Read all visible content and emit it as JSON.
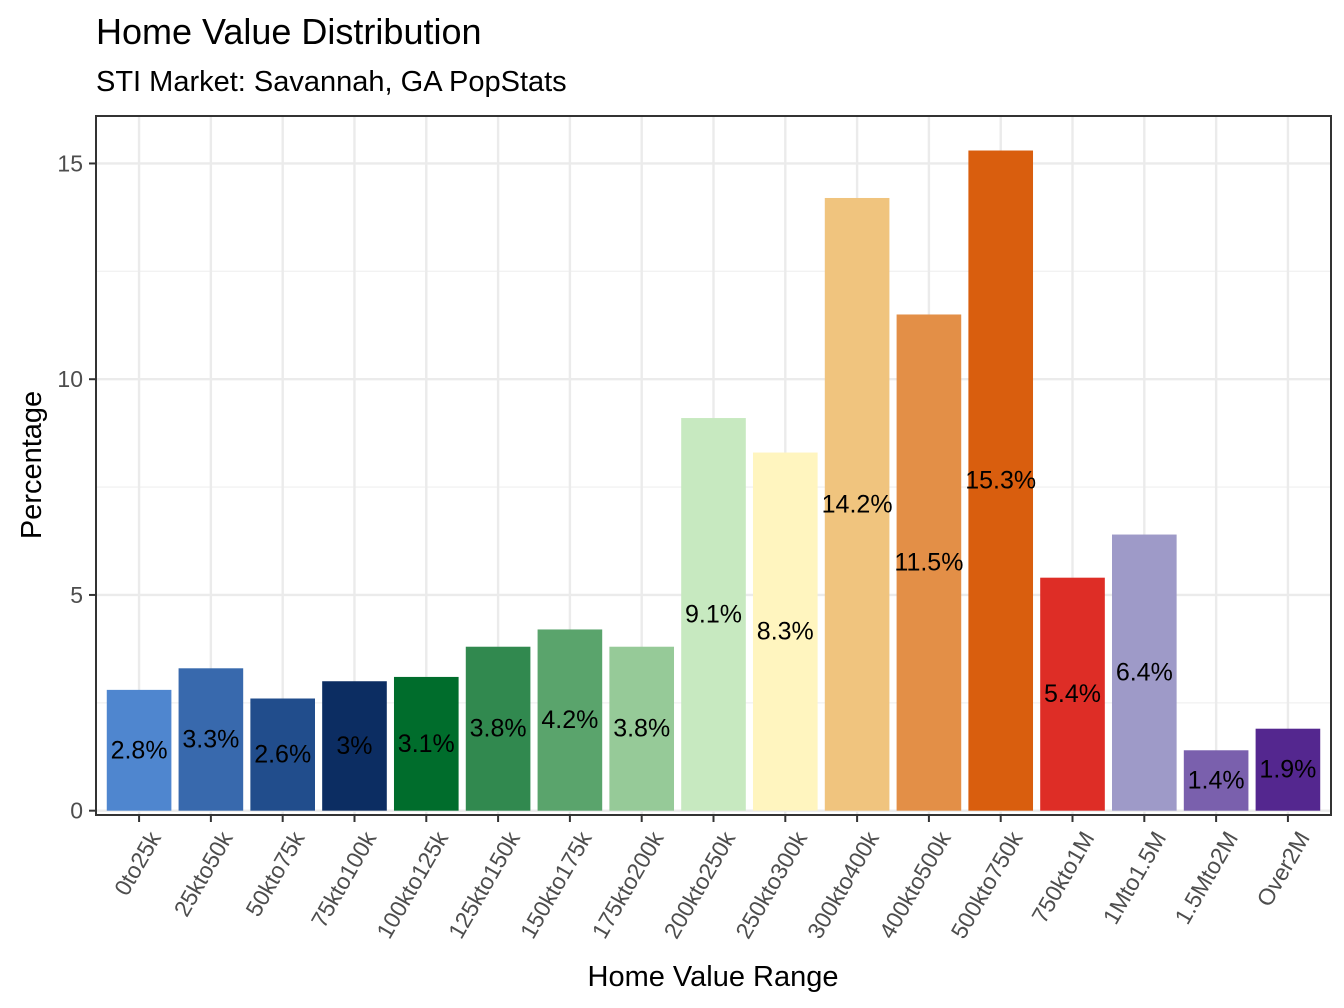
{
  "chart_data": {
    "type": "bar",
    "title": "Home Value Distribution",
    "subtitle": "STI Market: Savannah, GA PopStats",
    "xlabel": "Home Value Range",
    "ylabel": "Percentage",
    "ylim": [
      -0.1,
      16.1
    ],
    "yticks": [
      0,
      5,
      10,
      15
    ],
    "ytick_labels": [
      "0",
      "5",
      "10",
      "15"
    ],
    "grid": true,
    "legend": "none",
    "categories": [
      "0to25k",
      "25kto50k",
      "50kto75k",
      "75kto100k",
      "100kto125k",
      "125kto150k",
      "150kto175k",
      "175kto200k",
      "200kto250k",
      "250kto300k",
      "300kto400k",
      "400kto500k",
      "500kto750k",
      "750kto1M",
      "1Mto1.5M",
      "1.5Mto2M",
      "Over2M"
    ],
    "values": [
      2.8,
      3.3,
      2.6,
      3.0,
      3.1,
      3.8,
      4.2,
      3.8,
      9.1,
      8.3,
      14.2,
      11.5,
      15.3,
      5.4,
      6.4,
      1.4,
      1.9
    ],
    "labels": [
      "2.8%",
      "3.3%",
      "2.6%",
      "3%",
      "3.1%",
      "3.8%",
      "4.2%",
      "3.8%",
      "9.1%",
      "8.3%",
      "14.2%",
      "11.5%",
      "15.3%",
      "5.4%",
      "6.4%",
      "1.4%",
      "1.9%"
    ],
    "colors": [
      "#4f86cf",
      "#3869ad",
      "#214d8c",
      "#0c2d62",
      "#006d2c",
      "#31894f",
      "#5aa46c",
      "#96ca98",
      "#c7e9c0",
      "#fff5bf",
      "#f0c47e",
      "#e38f47",
      "#d95e0e",
      "#de2d26",
      "#9e9ac8",
      "#7a60ad",
      "#54278f"
    ]
  }
}
